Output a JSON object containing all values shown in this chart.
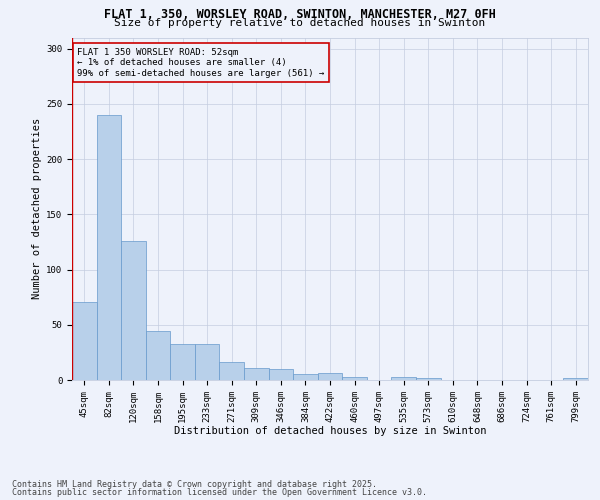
{
  "title1": "FLAT 1, 350, WORSLEY ROAD, SWINTON, MANCHESTER, M27 0FH",
  "title2": "Size of property relative to detached houses in Swinton",
  "xlabel": "Distribution of detached houses by size in Swinton",
  "ylabel": "Number of detached properties",
  "categories": [
    "45sqm",
    "82sqm",
    "120sqm",
    "158sqm",
    "195sqm",
    "233sqm",
    "271sqm",
    "309sqm",
    "346sqm",
    "384sqm",
    "422sqm",
    "460sqm",
    "497sqm",
    "535sqm",
    "573sqm",
    "610sqm",
    "648sqm",
    "686sqm",
    "724sqm",
    "761sqm",
    "799sqm"
  ],
  "values": [
    71,
    240,
    126,
    44,
    33,
    33,
    16,
    11,
    10,
    5,
    6,
    3,
    0,
    3,
    2,
    0,
    0,
    0,
    0,
    0,
    2
  ],
  "bar_color": "#b8d0ea",
  "bar_edge_color": "#6699cc",
  "annotation_line1": "FLAT 1 350 WORSLEY ROAD: 52sqm",
  "annotation_line2": "← 1% of detached houses are smaller (4)",
  "annotation_line3": "99% of semi-detached houses are larger (561) →",
  "annotation_box_color": "#cc0000",
  "marker_line_color": "#cc0000",
  "background_color": "#eef2fb",
  "grid_color": "#c5cde0",
  "ylim": [
    0,
    310
  ],
  "yticks": [
    0,
    50,
    100,
    150,
    200,
    250,
    300
  ],
  "footer1": "Contains HM Land Registry data © Crown copyright and database right 2025.",
  "footer2": "Contains public sector information licensed under the Open Government Licence v3.0.",
  "title1_fontsize": 8.5,
  "title2_fontsize": 8,
  "axis_label_fontsize": 7.5,
  "tick_fontsize": 6.5,
  "annotation_fontsize": 6.5,
  "footer_fontsize": 6
}
